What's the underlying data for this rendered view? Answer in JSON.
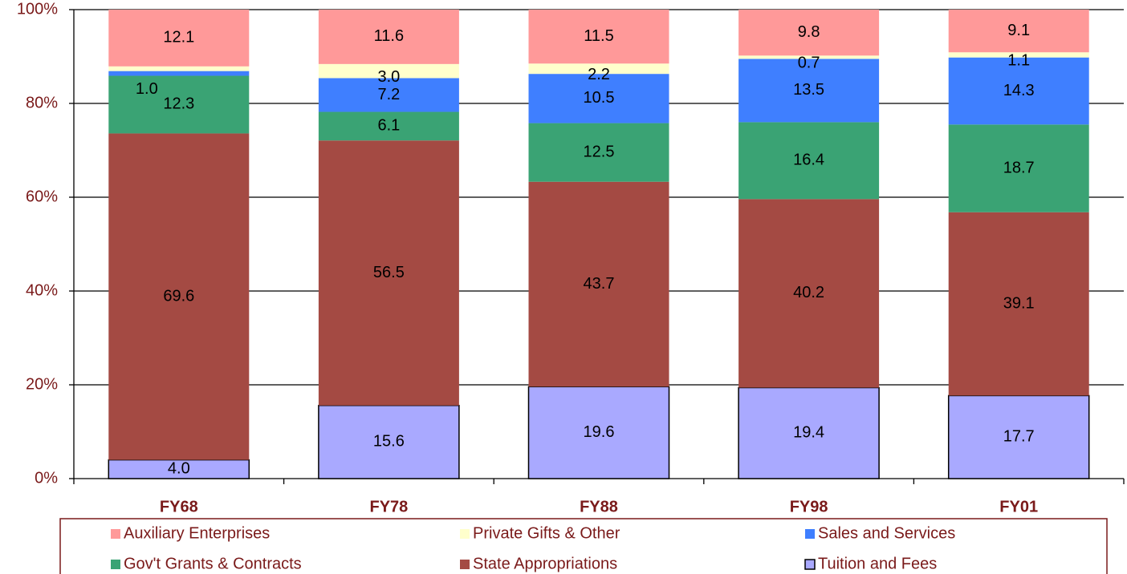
{
  "chart_data": {
    "type": "stacked_bar",
    "categories": [
      "FY68",
      "FY78",
      "FY88",
      "FY98",
      "FY01"
    ],
    "series": [
      {
        "name": "Tuition and Fees",
        "color": "#a9a9ff",
        "values": [
          4.0,
          15.6,
          19.6,
          19.4,
          17.7
        ]
      },
      {
        "name": "State Appropriations",
        "color": "#a44a43",
        "values": [
          69.6,
          56.5,
          43.7,
          40.2,
          39.1
        ]
      },
      {
        "name": "Gov't Grants & Contracts",
        "color": "#3aa374",
        "values": [
          12.3,
          6.1,
          12.5,
          16.4,
          18.7
        ]
      },
      {
        "name": "Sales and Services",
        "color": "#3f7fff",
        "values": [
          1.0,
          7.2,
          10.5,
          13.5,
          14.3
        ]
      },
      {
        "name": "Private Gifts & Other",
        "color": "#ffffcc",
        "values": [
          1.0,
          3.0,
          2.2,
          0.7,
          1.1
        ]
      },
      {
        "name": "Auxiliary Enterprises",
        "color": "#ff9999",
        "values": [
          12.1,
          11.6,
          11.5,
          9.8,
          9.1
        ]
      }
    ],
    "value_labels": [
      [
        "4.0",
        "15.6",
        "19.6",
        "19.4",
        "17.7"
      ],
      [
        "69.6",
        "56.5",
        "43.7",
        "40.2",
        "39.1"
      ],
      [
        "12.3",
        "6.1",
        "12.5",
        "16.4",
        "18.7"
      ],
      [
        "1.0",
        "7.2",
        "10.5",
        "13.5",
        "14.3"
      ],
      [
        "1.0",
        "3.0",
        "2.2",
        "0.7",
        "1.1"
      ],
      [
        "12.1",
        "11.6",
        "11.5",
        "9.8",
        "9.1"
      ]
    ],
    "ylim": [
      0,
      100
    ],
    "yticks": [
      {
        "value": 0,
        "label": "0%"
      },
      {
        "value": 20,
        "label": "20%"
      },
      {
        "value": 40,
        "label": "40%"
      },
      {
        "value": 60,
        "label": "60%"
      },
      {
        "value": 80,
        "label": "80%"
      },
      {
        "value": 100,
        "label": "100%"
      }
    ],
    "grid": true,
    "legend": "bottom"
  }
}
